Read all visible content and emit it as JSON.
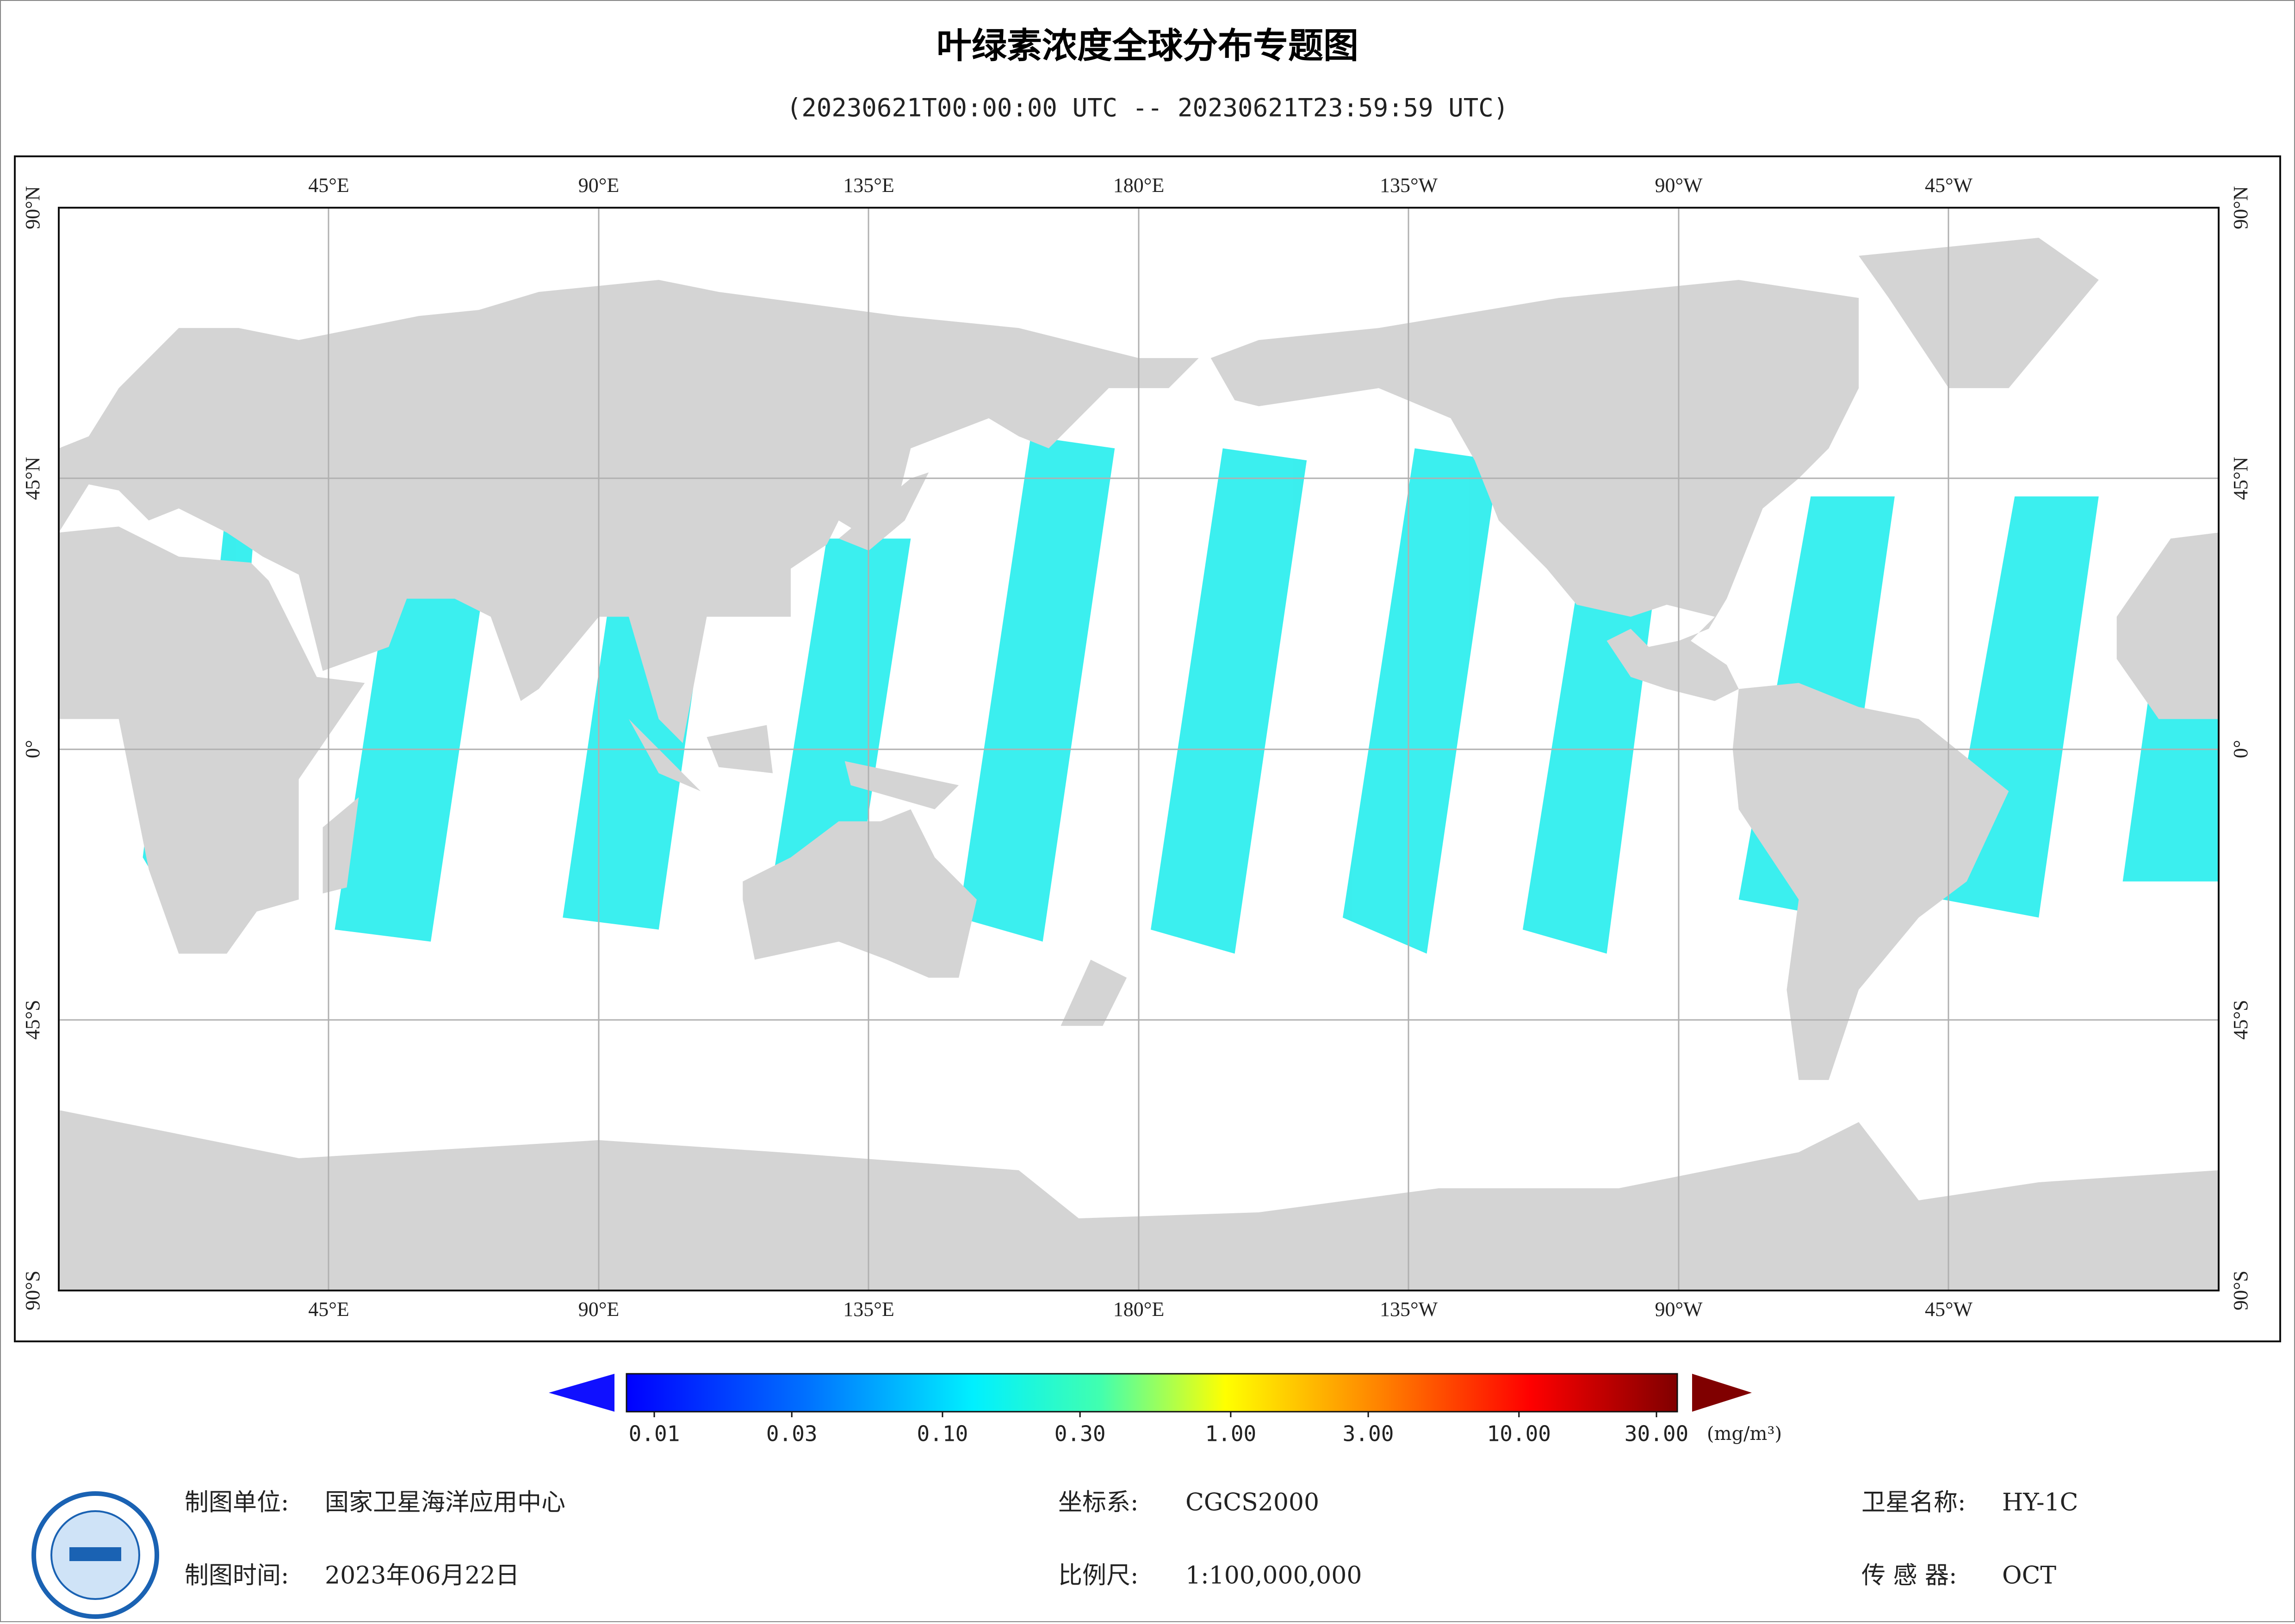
{
  "title": "叶绿素浓度全球分布专题图",
  "subtitle": "(20230621T00:00:00 UTC -- 20230621T23:59:59 UTC)",
  "map": {
    "lon_labels": [
      "45°E",
      "90°E",
      "135°E",
      "180°E",
      "135°W",
      "90°W",
      "45°W"
    ],
    "lat_labels": [
      "90°N",
      "45°N",
      "0°",
      "45°S",
      "90°S"
    ]
  },
  "colorbar": {
    "scale": "log",
    "lim": [
      0.01,
      30
    ],
    "ticks": [
      0.01,
      0.03,
      {
        "value": 0.1,
        "label": "0.10"
      },
      {
        "value": 0.3,
        "label": "0.30"
      },
      {
        "value": 1,
        "label": "1.00"
      },
      {
        "value": 3,
        "label": "3.00"
      },
      {
        "value": 10,
        "label": "10.00"
      },
      {
        "value": 30,
        "label": "30.00"
      }
    ],
    "unit": "(mg/m³)"
  },
  "footer": {
    "unit_label": "制图单位:",
    "unit": "国家卫星海洋应用中心",
    "date_label": "制图时间:",
    "date": "2023年06月22日",
    "crs_label": "坐标系:",
    "crs": "CGCS2000",
    "scale_label": "比例尺:",
    "scale": "1:100,000,000",
    "satellite_label": "卫星名称:",
    "satellite": "HY-1C",
    "sensor_label": "传 感 器:",
    "sensor": "OCT"
  }
}
